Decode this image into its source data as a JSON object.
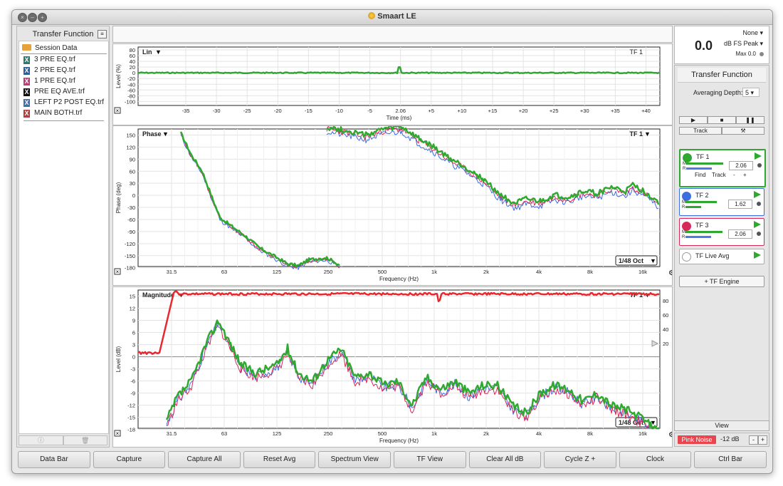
{
  "window": {
    "title": "Smaart LE"
  },
  "left_panel": {
    "title": "Transfer Function",
    "session": "Session Data",
    "files": [
      {
        "name": "3 PRE EQ.trf",
        "color": "#2a7c70"
      },
      {
        "name": "2 PRE EQ.trf",
        "color": "#2d5f9a"
      },
      {
        "name": "1 PRE EQ.trf",
        "color": "#c23a78"
      },
      {
        "name": "PRE EQ AVE.trf",
        "color": "#111111"
      },
      {
        "name": "LEFT P2 POST EQ.trf",
        "color": "#3f6fb0"
      },
      {
        "name": "MAIN BOTH.trf",
        "color": "#b03f42"
      }
    ]
  },
  "impulse_plot": {
    "mode_label": "Lin",
    "trace_label": "TF 1",
    "ylabel": "Level (%)",
    "xlabel": "Time (ms)",
    "yticks": [
      "80",
      "60",
      "40",
      "20",
      "0",
      "-20",
      "-40",
      "-60",
      "-80",
      "-100"
    ],
    "xticks": [
      "-35",
      "-30",
      "-25",
      "-20",
      "-15",
      "-10",
      "-5",
      "2.06",
      "+5",
      "+10",
      "+15",
      "+20",
      "+25",
      "+30",
      "+35",
      "+40"
    ]
  },
  "phase_plot": {
    "mode_label": "Phase",
    "trace_label": "TF 1",
    "ylabel": "Phase (deg)",
    "xlabel": "Frequency (Hz)",
    "yticks": [
      "150",
      "120",
      "90",
      "60",
      "30",
      "0",
      "-30",
      "-60",
      "-90",
      "-120",
      "-150",
      "-180"
    ],
    "xticks": [
      "31.5",
      "63",
      "125",
      "250",
      "500",
      "1k",
      "2k",
      "4k",
      "8k",
      "16k"
    ],
    "smoothing": "1/48 Oct"
  },
  "magnitude_plot": {
    "mode_label": "Magnitude",
    "trace_label": "TF 1",
    "ylabel": "Level (dB)",
    "xlabel": "Frequency (Hz)",
    "yticks": [
      "15",
      "12",
      "9",
      "6",
      "3",
      "0",
      "-3",
      "-6",
      "-9",
      "-12",
      "-15",
      "-18"
    ],
    "y2ticks": [
      "80",
      "60",
      "40",
      "20"
    ],
    "xticks": [
      "31.5",
      "63",
      "125",
      "250",
      "500",
      "1k",
      "2k",
      "4k",
      "8k",
      "16k"
    ],
    "smoothing": "1/48 Oct"
  },
  "meter": {
    "source": "None",
    "value": "0.0",
    "unit": "dB FS Peak",
    "max": "Max 0.0"
  },
  "tf_panel": {
    "title": "Transfer Function",
    "averaging_label": "Averaging Depth:",
    "averaging_value": "5",
    "track_label": "Track",
    "engines": [
      {
        "name": "TF 1",
        "color": "#2ea82e",
        "delay": "2.06",
        "find": "Find",
        "track": "Track",
        "minus": "-",
        "plus": "+"
      },
      {
        "name": "TF 2",
        "color": "#3d6de0",
        "delay": "1.62"
      },
      {
        "name": "TF 3",
        "color": "#d8285a",
        "delay": "2.06"
      },
      {
        "name": "TF Live Avg",
        "color": "#ffffff"
      }
    ],
    "add_engine": "+ TF Engine",
    "view": "View",
    "pink_noise": "Pink Noise",
    "noise_level": "-12 dB"
  },
  "commands": [
    "Data Bar",
    "Capture",
    "Capture All",
    "Reset Avg",
    "Spectrum View",
    "TF View",
    "Clear All dB",
    "Cycle Z +",
    "Clock",
    "Ctrl Bar"
  ]
}
